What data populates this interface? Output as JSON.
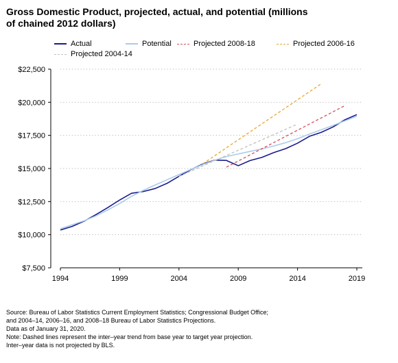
{
  "chart_data": {
    "type": "line",
    "title": "Gross Domestic Product, projected, actual, and potential (millions of chained 2012 dollars)",
    "xlabel": "",
    "ylabel": "",
    "xlim": [
      1994,
      2019
    ],
    "ylim": [
      7500,
      22500
    ],
    "x_ticks": [
      "1994",
      "1999",
      "2004",
      "2009",
      "2014",
      "2019"
    ],
    "y_ticks": [
      "$7,500",
      "$10,000",
      "$12,500",
      "$15,000",
      "$17,500",
      "$20,000",
      "$22,500"
    ],
    "grid": "horizontal-dotted",
    "legend_position": "top",
    "series": [
      {
        "name": "Actual",
        "color": "#1a1a8c",
        "style": "solid",
        "x": [
          1994,
          1995,
          1996,
          1997,
          1998,
          1999,
          2000,
          2001,
          2002,
          2003,
          2004,
          2005,
          2006,
          2007,
          2008,
          2009,
          2010,
          2011,
          2012,
          2013,
          2014,
          2015,
          2016,
          2017,
          2018,
          2019
        ],
        "values": [
          10350,
          10630,
          11020,
          11520,
          12050,
          12620,
          13130,
          13260,
          13490,
          13880,
          14410,
          14910,
          15340,
          15630,
          15610,
          15210,
          15600,
          15840,
          16200,
          16500,
          16910,
          17430,
          17730,
          18140,
          18680,
          19070
        ]
      },
      {
        "name": "Potential",
        "color": "#a9cbea",
        "style": "solid",
        "x": [
          1994,
          1995,
          1996,
          1997,
          1998,
          1999,
          2000,
          2001,
          2002,
          2003,
          2004,
          2005,
          2006,
          2007,
          2008,
          2009,
          2010,
          2011,
          2012,
          2013,
          2014,
          2015,
          2016,
          2017,
          2018,
          2019
        ],
        "values": [
          10450,
          10750,
          11050,
          11420,
          11870,
          12350,
          12900,
          13350,
          13760,
          14150,
          14540,
          14930,
          15290,
          15620,
          15900,
          16100,
          16290,
          16480,
          16700,
          16950,
          17250,
          17600,
          17920,
          18250,
          18600,
          18950
        ]
      },
      {
        "name": "Projected 2008-18",
        "color": "#d0505a",
        "style": "dashed",
        "x": [
          2008,
          2018
        ],
        "values": [
          15100,
          19750
        ]
      },
      {
        "name": "Projected 2006-16",
        "color": "#e8a530",
        "style": "dashed",
        "x": [
          2006,
          2016
        ],
        "values": [
          15350,
          21400
        ]
      },
      {
        "name": "Projected 2004-14",
        "color": "#c0c0c0",
        "style": "dashed",
        "x": [
          2004,
          2014
        ],
        "values": [
          14400,
          18350
        ]
      }
    ]
  },
  "source_lines": [
    "Source: Bureau of Labor Statistics Current Employment Statistics; Congressional Budget Office;",
    "and 2004–14, 2006–16, and 2008–18 Bureau of Labor Statistics Projections.",
    "Data as of January 31, 2020.",
    "Note: Dashed lines represent the inter–year trend from base year to target year projection.",
    "Inter–year data is not projected by BLS."
  ]
}
